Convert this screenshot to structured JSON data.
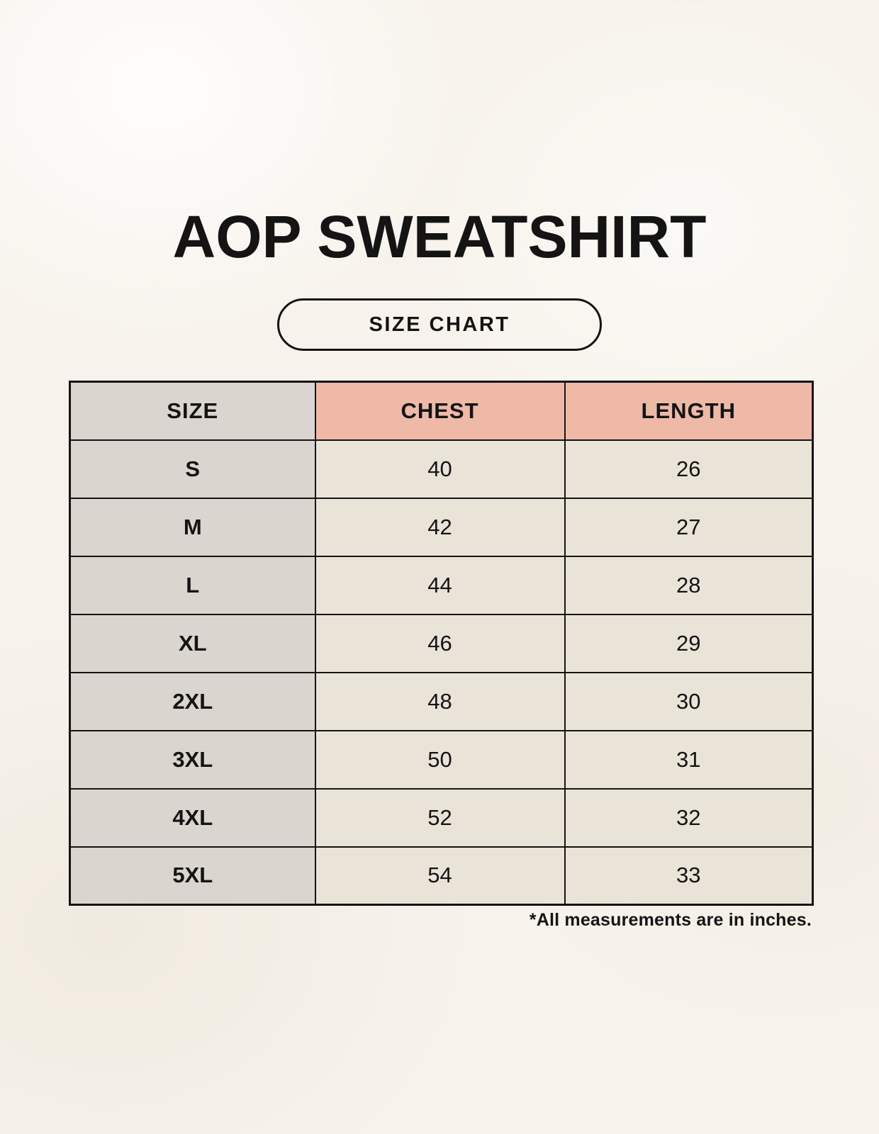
{
  "page": {
    "title": "AOP SWEATSHIRT",
    "badge_label": "SIZE CHART",
    "footnote": "*All measurements are in inches."
  },
  "chart_data": {
    "type": "table",
    "title": "AOP SWEATSHIRT",
    "subtitle": "SIZE CHART",
    "units": "inches",
    "columns": [
      "SIZE",
      "CHEST",
      "LENGTH"
    ],
    "rows": [
      {
        "size": "S",
        "chest": "40",
        "length": "26"
      },
      {
        "size": "M",
        "chest": "42",
        "length": "27"
      },
      {
        "size": "L",
        "chest": "44",
        "length": "28"
      },
      {
        "size": "XL",
        "chest": "46",
        "length": "29"
      },
      {
        "size": "2XL",
        "chest": "48",
        "length": "30"
      },
      {
        "size": "3XL",
        "chest": "50",
        "length": "31"
      },
      {
        "size": "4XL",
        "chest": "52",
        "length": "32"
      },
      {
        "size": "5XL",
        "chest": "54",
        "length": "33"
      }
    ],
    "note": "*All measurements are in inches.",
    "layout": {
      "header_row_fill": "#efb9a7",
      "size_column_fill": "#dbd5cf",
      "data_cell_fill": "#e9e3d8",
      "grid": "on"
    }
  },
  "colors": {
    "background": "#f7f3ec",
    "pink_header": "#efb9a7",
    "gray_column": "#dbd5cf",
    "cream_cell": "#e9e3d8",
    "line": "#141414",
    "ink": "#141414"
  }
}
